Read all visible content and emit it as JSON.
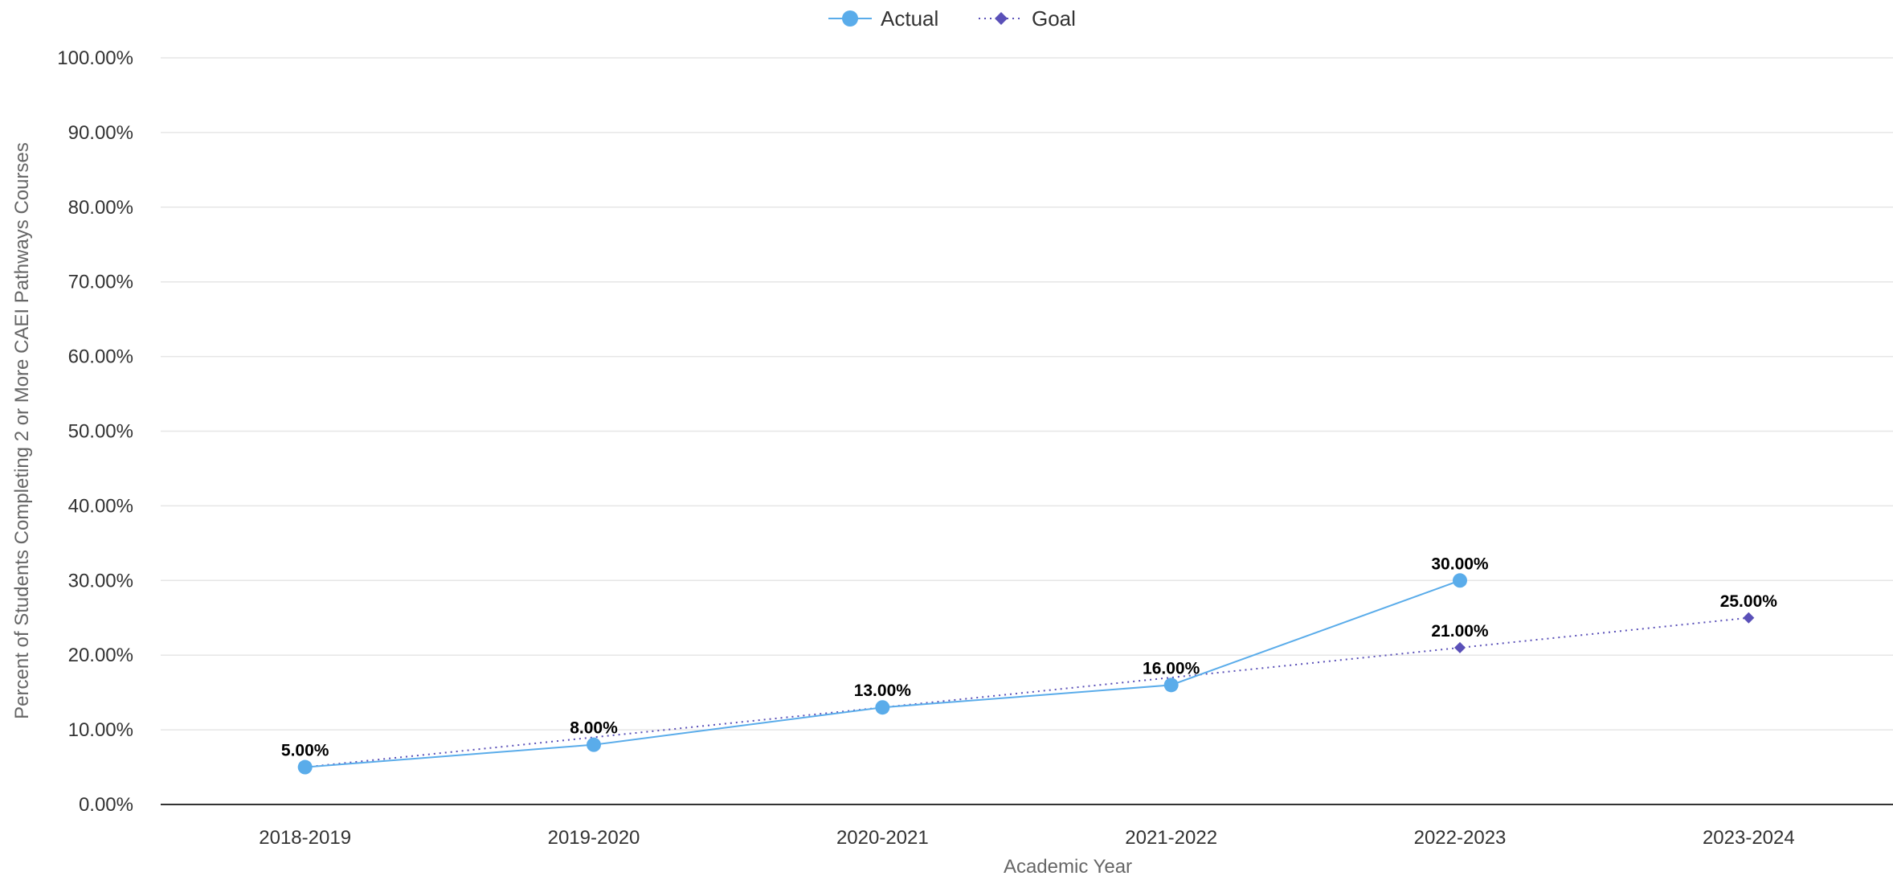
{
  "chart_data": {
    "type": "line",
    "title": "",
    "xlabel": "Academic Year",
    "ylabel": "Percent of Students Completing 2 or More CAEI Pathways Courses",
    "categories": [
      "2018-2019",
      "2019-2020",
      "2020-2021",
      "2021-2022",
      "2022-2023",
      "2023-2024"
    ],
    "ylim": [
      0,
      100
    ],
    "y_ticks": [
      "0.00%",
      "10.00%",
      "20.00%",
      "30.00%",
      "40.00%",
      "50.00%",
      "60.00%",
      "70.00%",
      "80.00%",
      "90.00%",
      "100.00%"
    ],
    "y_tick_values": [
      0,
      10,
      20,
      30,
      40,
      50,
      60,
      70,
      80,
      90,
      100
    ],
    "grid": true,
    "legend_position": "top-center",
    "series": [
      {
        "name": "Actual",
        "values": [
          5,
          8,
          13,
          16,
          30,
          null
        ],
        "labels": [
          "5.00%",
          "8.00%",
          "13.00%",
          "16.00%",
          "30.00%",
          null
        ],
        "color": "#5aacea",
        "marker": "circle",
        "line_style": "solid"
      },
      {
        "name": "Goal",
        "values": [
          5,
          9,
          13,
          17,
          21,
          25
        ],
        "labels": [
          null,
          null,
          null,
          null,
          "21.00%",
          "25.00%"
        ],
        "color": "#5a50b8",
        "marker": "diamond",
        "line_style": "dotted"
      }
    ]
  }
}
